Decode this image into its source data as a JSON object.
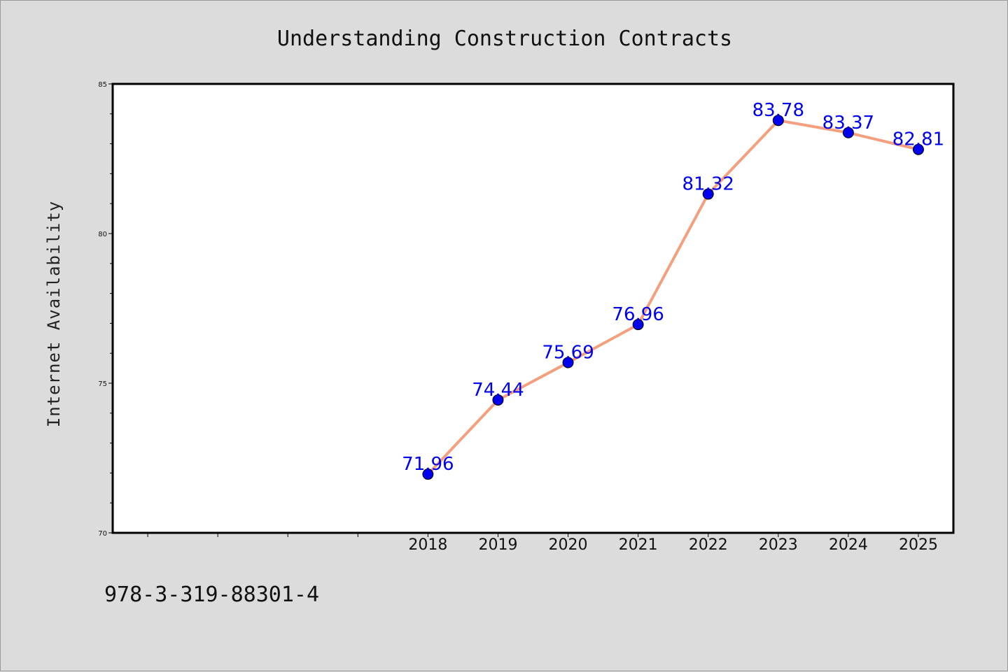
{
  "chart_data": {
    "type": "line",
    "title": "Understanding Construction Contracts",
    "xlabel": "",
    "ylabel": "Internet Availability",
    "x": [
      "2018",
      "2019",
      "2020",
      "2021",
      "2022",
      "2023",
      "2024",
      "2025"
    ],
    "series": [
      {
        "values": [
          71.96,
          74.44,
          75.69,
          76.96,
          81.32,
          83.78,
          83.37,
          82.81
        ],
        "labels": [
          "71.96",
          "74.44",
          "75.69",
          "76.96",
          "81.32",
          "83.78",
          "83.37",
          "82.81"
        ]
      }
    ],
    "y_ticks": [
      "70",
      "75",
      "80",
      "85"
    ],
    "ylim": [
      70,
      85
    ],
    "x_axis_range": [
      "2013.5",
      "2025.5"
    ],
    "grid": false,
    "legend": "none",
    "colors": {
      "line": "#f4a07e",
      "marker": "#0000ee",
      "label": "#0000ee",
      "background": "#dcdcdc",
      "plot_background": "#ffffff"
    }
  },
  "footer": {
    "code": "978-3-319-88301-4"
  }
}
